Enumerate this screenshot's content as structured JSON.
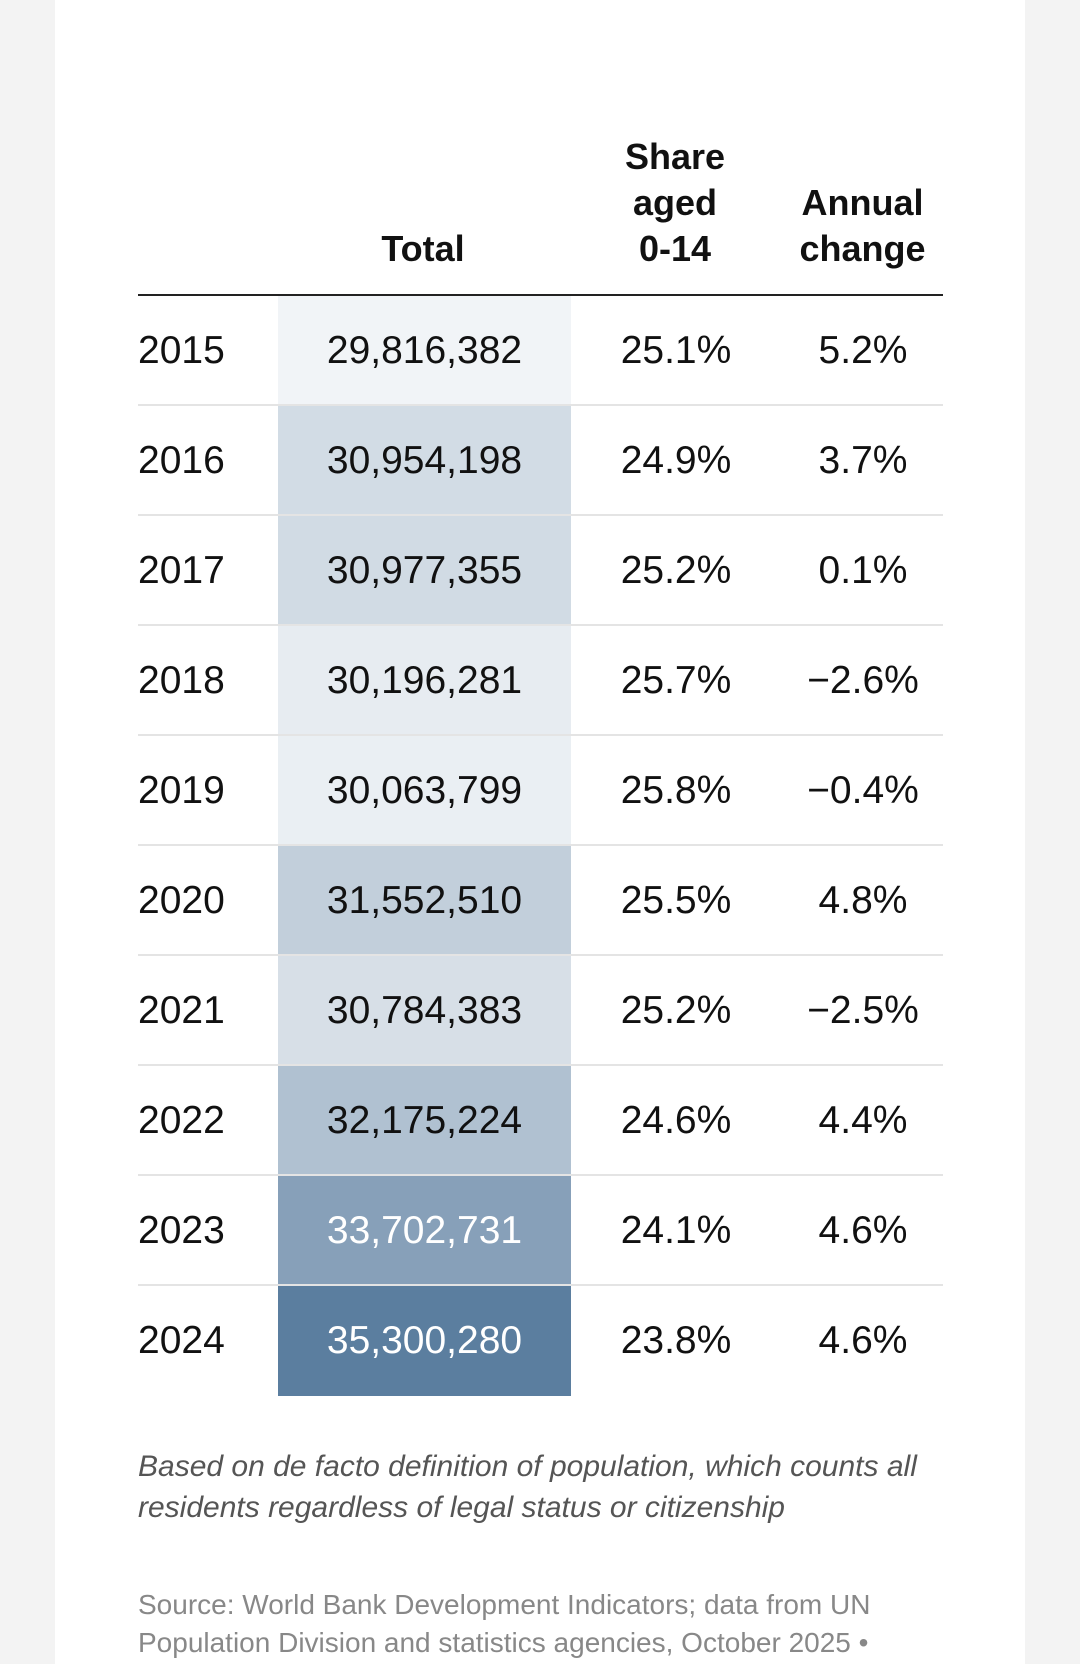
{
  "chart_data": {
    "type": "table",
    "columns": [
      "",
      "Total",
      "Share aged 0-14",
      "Annual change"
    ],
    "header_lines": {
      "total": [
        "Total"
      ],
      "share": [
        "Share",
        "aged",
        "0-14"
      ],
      "change": [
        "Annual",
        "change"
      ]
    },
    "rows": [
      {
        "year": "2015",
        "total": "29,816,382",
        "share": "25.1%",
        "change": "5.2%",
        "total_value": 29816382
      },
      {
        "year": "2016",
        "total": "30,954,198",
        "share": "24.9%",
        "change": "3.7%",
        "total_value": 30954198
      },
      {
        "year": "2017",
        "total": "30,977,355",
        "share": "25.2%",
        "change": "0.1%",
        "total_value": 30977355
      },
      {
        "year": "2018",
        "total": "30,196,281",
        "share": "25.7%",
        "change": "−2.6%",
        "total_value": 30196281
      },
      {
        "year": "2019",
        "total": "30,063,799",
        "share": "25.8%",
        "change": "−0.4%",
        "total_value": 30063799
      },
      {
        "year": "2020",
        "total": "31,552,510",
        "share": "25.5%",
        "change": "4.8%",
        "total_value": 31552510
      },
      {
        "year": "2021",
        "total": "30,784,383",
        "share": "25.2%",
        "change": "−2.5%",
        "total_value": 30784383
      },
      {
        "year": "2022",
        "total": "32,175,224",
        "share": "24.6%",
        "change": "4.4%",
        "total_value": 32175224
      },
      {
        "year": "2023",
        "total": "33,702,731",
        "share": "24.1%",
        "change": "4.6%",
        "total_value": 33702731
      },
      {
        "year": "2024",
        "total": "35,300,280",
        "share": "23.8%",
        "change": "4.6%",
        "total_value": 35300280
      }
    ],
    "heat_colors": {
      "low": "#f1f4f7",
      "high": "#5b7e9f"
    }
  },
  "footnote": "Based on de facto definition of population, which counts all residents regardless of legal status or citizenship",
  "source": "Source: World Bank Development Indicators; data from UN Population Division and statistics agencies, October 2025 •"
}
